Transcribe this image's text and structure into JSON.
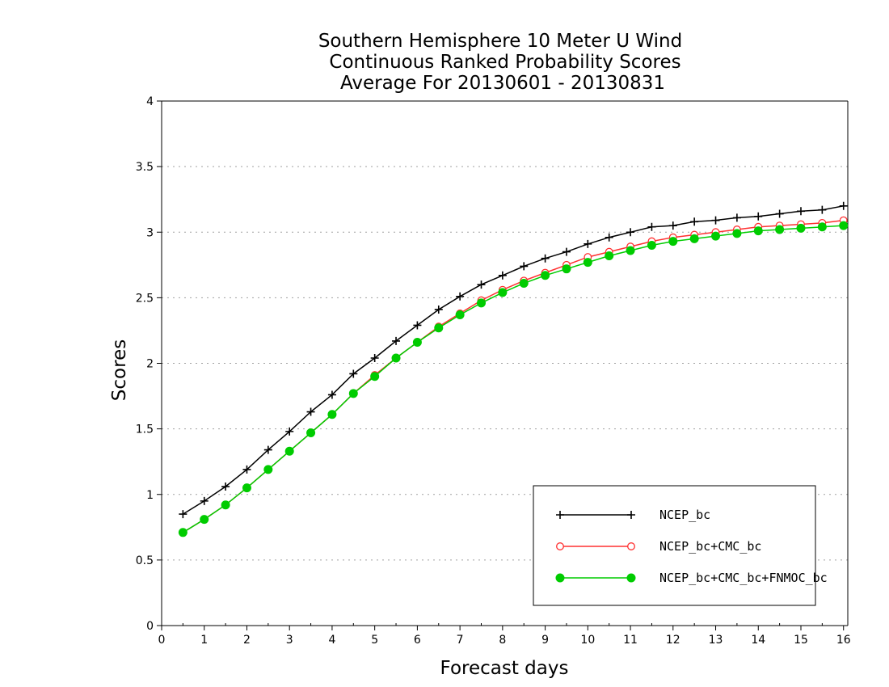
{
  "chart_data": {
    "type": "line",
    "title": [
      "Southern Hemisphere 10 Meter U Wind",
      "Continuous Ranked Probability Scores",
      "Average For 20130601 - 20130831"
    ],
    "xlabel": "Forecast days",
    "ylabel": "Scores",
    "xlim": [
      0,
      16.1
    ],
    "ylim": [
      0,
      4
    ],
    "xticks": [
      "0",
      "1",
      "2",
      "3",
      "4",
      "5",
      "6",
      "7",
      "8",
      "9",
      "10",
      "11",
      "12",
      "13",
      "14",
      "15",
      "16"
    ],
    "yticks": [
      "0",
      "0.5",
      "1",
      "1.5",
      "2",
      "2.5",
      "3",
      "3.5",
      "4"
    ],
    "grid": "horizontal dotted",
    "legend_position": "bottom-right",
    "x": [
      0.5,
      1,
      1.5,
      2,
      2.5,
      3,
      3.5,
      4,
      4.5,
      5,
      5.5,
      6,
      6.5,
      7,
      7.5,
      8,
      8.5,
      9,
      9.5,
      10,
      10.5,
      11,
      11.5,
      12,
      12.5,
      13,
      13.5,
      14,
      14.5,
      15,
      15.5,
      16
    ],
    "series": [
      {
        "name": "NCEP_bc",
        "color": "#000000",
        "marker": "plus",
        "values": [
          0.85,
          0.95,
          1.06,
          1.19,
          1.34,
          1.48,
          1.63,
          1.76,
          1.92,
          2.04,
          2.17,
          2.29,
          2.41,
          2.51,
          2.6,
          2.67,
          2.74,
          2.8,
          2.85,
          2.91,
          2.96,
          3.0,
          3.04,
          3.05,
          3.08,
          3.09,
          3.11,
          3.12,
          3.14,
          3.16,
          3.17,
          3.2
        ]
      },
      {
        "name": "NCEP_bc+CMC_bc",
        "color": "#ff3030",
        "marker": "open-circle",
        "values": [
          0.71,
          0.81,
          0.92,
          1.05,
          1.19,
          1.33,
          1.47,
          1.61,
          1.77,
          1.91,
          2.04,
          2.16,
          2.28,
          2.38,
          2.48,
          2.56,
          2.63,
          2.69,
          2.75,
          2.81,
          2.85,
          2.89,
          2.93,
          2.96,
          2.98,
          3.0,
          3.02,
          3.04,
          3.05,
          3.06,
          3.07,
          3.09
        ]
      },
      {
        "name": "NCEP_bc+CMC_bc+FNMOC_bc",
        "color": "#00cc00",
        "marker": "filled-circle",
        "values": [
          0.71,
          0.81,
          0.92,
          1.05,
          1.19,
          1.33,
          1.47,
          1.61,
          1.77,
          1.9,
          2.04,
          2.16,
          2.27,
          2.37,
          2.46,
          2.54,
          2.61,
          2.67,
          2.72,
          2.77,
          2.82,
          2.86,
          2.9,
          2.93,
          2.95,
          2.97,
          2.99,
          3.01,
          3.02,
          3.03,
          3.04,
          3.05
        ]
      }
    ]
  }
}
